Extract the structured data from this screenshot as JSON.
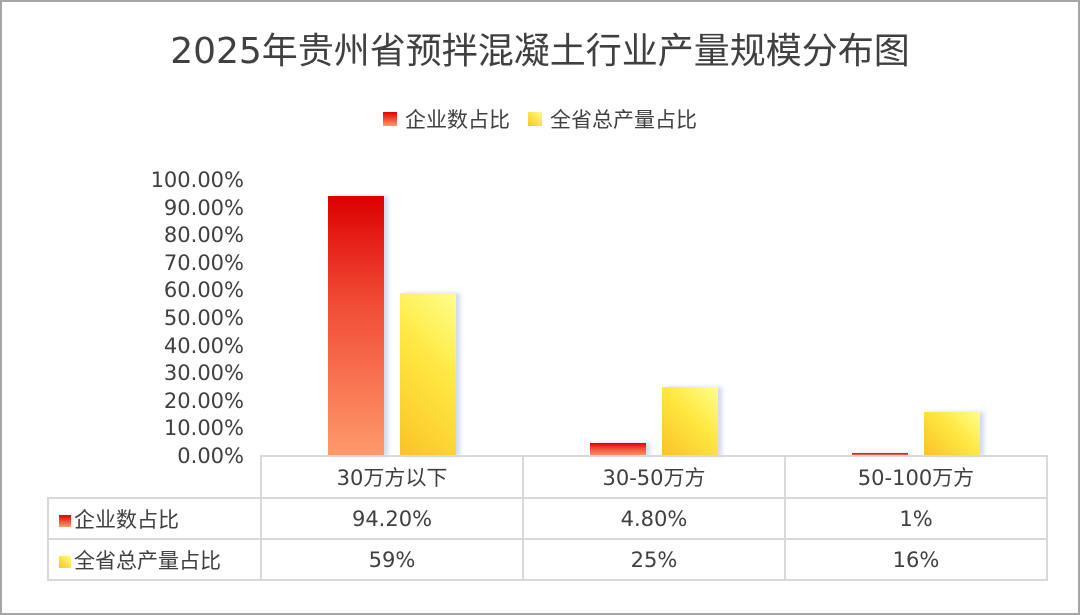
{
  "chart": {
    "title": "2025年贵州省预拌混凝土行业产量规模分布图",
    "legend": [
      {
        "label": "企业数占比",
        "color": "#e00000"
      },
      {
        "label": "全省总产量占比",
        "color": "#ffd43b"
      }
    ],
    "y_ticks": [
      "100.00%",
      "90.00%",
      "80.00%",
      "70.00%",
      "60.00%",
      "50.00%",
      "40.00%",
      "30.00%",
      "20.00%",
      "10.00%",
      "0.00%"
    ],
    "table": {
      "categories": [
        "30万方以下",
        "30-50万方",
        "50-100万方"
      ],
      "rows": [
        {
          "label": "企业数占比",
          "values": [
            "94.20%",
            "4.80%",
            "1%"
          ]
        },
        {
          "label": "全省总产量占比",
          "values": [
            "59%",
            "25%",
            "16%"
          ]
        }
      ]
    }
  },
  "chart_data": {
    "type": "bar",
    "title": "2025年贵州省预拌混凝土行业产量规模分布图",
    "categories": [
      "30万方以下",
      "30-50万方",
      "50-100万方"
    ],
    "series": [
      {
        "name": "企业数占比",
        "values": [
          94.2,
          4.8,
          1
        ]
      },
      {
        "name": "全省总产量占比",
        "values": [
          59,
          25,
          16
        ]
      }
    ],
    "xlabel": "",
    "ylabel": "",
    "ylim": [
      0,
      100
    ],
    "y_tick_format": "0.00%",
    "grid": false,
    "legend_position": "top",
    "data_table": true
  }
}
